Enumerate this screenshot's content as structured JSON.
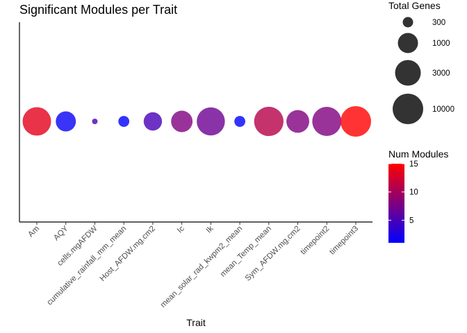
{
  "chart_data": {
    "type": "scatter",
    "title": "Significant Modules per Trait",
    "xlabel": "Trait",
    "ylabel": "",
    "categories": [
      "Am",
      "AQY",
      "cells.mgAFDW",
      "cumulative_rainfall_mm_mean",
      "Host_AFDW.mg.cm2",
      "Ic",
      "Ik",
      "mean_solar_rad_kwpm2_mean",
      "mean_Temp_mean",
      "Sym_AFDW.mg.cm2",
      "timepoint2",
      "timepoint3"
    ],
    "y": [
      1,
      1,
      1,
      1,
      1,
      1,
      1,
      1,
      1,
      1,
      1,
      1
    ],
    "total_genes": [
      6000,
      1000,
      100,
      320,
      800,
      1300,
      5500,
      320,
      7500,
      1700,
      7000,
      10000
    ],
    "num_modules": [
      13.5,
      1.5,
      5,
      1,
      5,
      8,
      7,
      1,
      11,
      8,
      8,
      15
    ],
    "size_legend": {
      "title": "Total Genes",
      "breaks": [
        300,
        1000,
        3000,
        10000
      ],
      "labels": [
        "300",
        "1000",
        "3000",
        "10000"
      ]
    },
    "color_legend": {
      "title": "Num Modules",
      "range": [
        1,
        15
      ],
      "breaks": [
        5,
        10,
        15
      ],
      "labels": [
        "5",
        "10",
        "15"
      ],
      "low": "#0000ff",
      "high": "#ff0000"
    },
    "grid": false,
    "legend_position": "right"
  }
}
